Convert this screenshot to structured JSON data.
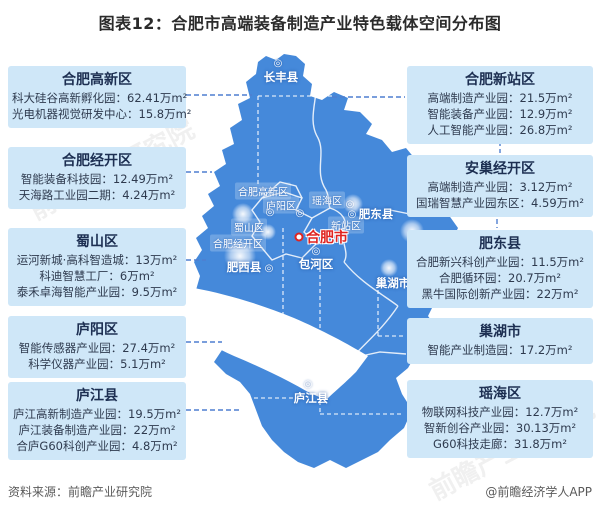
{
  "title": "图表12：合肥市高端装备制造产业特色载体空间分布图",
  "colors": {
    "map_blue": "#4589da",
    "callout_bg": "#cfe7f8",
    "connector_blue": "#4f7fd0",
    "city_red": "#e02421"
  },
  "callouts": {
    "left": [
      {
        "name": "合肥高新区",
        "items": [
          "科大硅谷高新孵化园：62.41万m²",
          "光电机器视觉研发中心：15.8万m²"
        ]
      },
      {
        "name": "合肥经开区",
        "items": [
          "智能装备科技园：12.49万m²",
          "天海路工业园二期：4.24万m²"
        ]
      },
      {
        "name": "蜀山区",
        "items": [
          "运河新城·高科智造城：13万m²",
          "科迪智慧工厂：6万m²",
          "泰禾卓海智能产业园：9.5万m²"
        ]
      },
      {
        "name": "庐阳区",
        "items": [
          "智能传感器产业园：27.4万m²",
          "科学仪器产业园：5.1万m²"
        ]
      },
      {
        "name": "庐江县",
        "items": [
          "庐江高新制造产业园：19.5万m²",
          "庐江装备制造产业园：22万m²",
          "合庐G60科创产业园：4.8万m²"
        ]
      }
    ],
    "right": [
      {
        "name": "合肥新站区",
        "items": [
          "高端制造产业园：21.5万m²",
          "智能装备产业园：12.9万m²",
          "人工智能产业园：26.8万m²"
        ]
      },
      {
        "name": "安巢经开区",
        "items": [
          "高端制造产业园：3.12万m²",
          "国瑞智慧产业园东区：4.59万m²"
        ]
      },
      {
        "name": "肥东县",
        "items": [
          "合肥新兴科创产业园：11.5万m²",
          "合肥循环园：20.7万m²",
          "黑牛国际创新产业园：22万m²"
        ]
      },
      {
        "name": "巢湖市",
        "items": [
          "智能产业制造园：17.2万m²"
        ]
      },
      {
        "name": "瑶海区",
        "items": [
          "物联网科技产业园：12.7万m²",
          "智新创谷产业园：30.13万m²",
          "G60科技走廊：31.8万m²"
        ]
      }
    ]
  },
  "map": {
    "city": "合肥市",
    "districts": [
      "长丰县",
      "合肥高新区",
      "庐阳区",
      "瑶海区",
      "蜀山区",
      "新站区",
      "合肥经开区",
      "肥东县",
      "肥西县",
      "包河区",
      "巢湖市",
      "庐江县"
    ]
  },
  "footer": {
    "source": "资料来源：前瞻产业研究院",
    "credit": "@前瞻经济学人APP"
  },
  "watermark": "前瞻产业研究院"
}
